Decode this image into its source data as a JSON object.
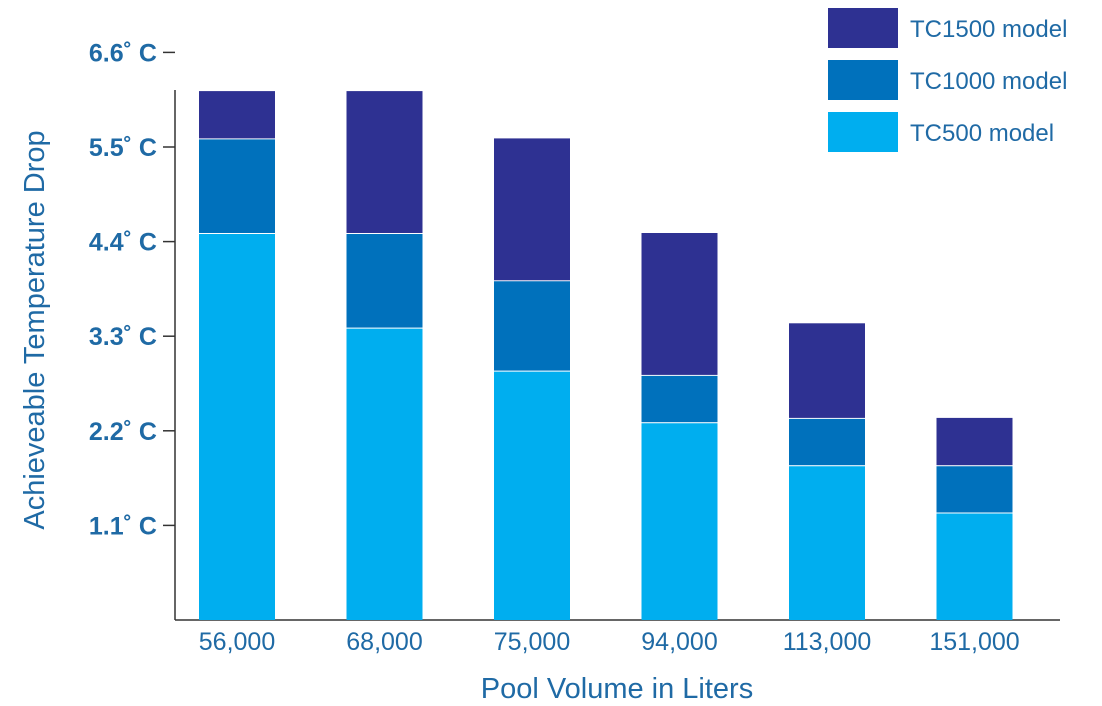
{
  "chart_data": {
    "type": "bar",
    "stacked": true,
    "xlabel": "Pool Volume in Liters",
    "ylabel": "Achieveable Temperature Drop",
    "categories": [
      "56,000",
      "68,000",
      "75,000",
      "94,000",
      "113,000",
      "151,000"
    ],
    "y_ticks": [
      {
        "value": 1.1,
        "label": "1.1˚ C"
      },
      {
        "value": 2.2,
        "label": "2.2˚ C"
      },
      {
        "value": 3.3,
        "label": "3.3˚ C"
      },
      {
        "value": 4.4,
        "label": "4.4˚ C"
      },
      {
        "value": 5.5,
        "label": "5.5˚ C"
      },
      {
        "value": 6.6,
        "label": "6.6˚ C"
      }
    ],
    "ylim": [
      0,
      7.8
    ],
    "series": [
      {
        "name": "TC500 model",
        "color": "#00aeef",
        "values": [
          4.5,
          3.4,
          2.9,
          2.3,
          1.8,
          1.25
        ]
      },
      {
        "name": "TC1000 model",
        "color": "#0071bc",
        "values": [
          1.1,
          1.1,
          1.05,
          0.55,
          0.55,
          0.55
        ]
      },
      {
        "name": "TC1500 model",
        "color": "#2e3192",
        "values": [
          0.55,
          1.65,
          1.65,
          1.65,
          1.1,
          0.55
        ]
      }
    ],
    "legend_order": [
      2,
      1,
      0
    ],
    "legend_position": "top-right",
    "grid": false
  }
}
